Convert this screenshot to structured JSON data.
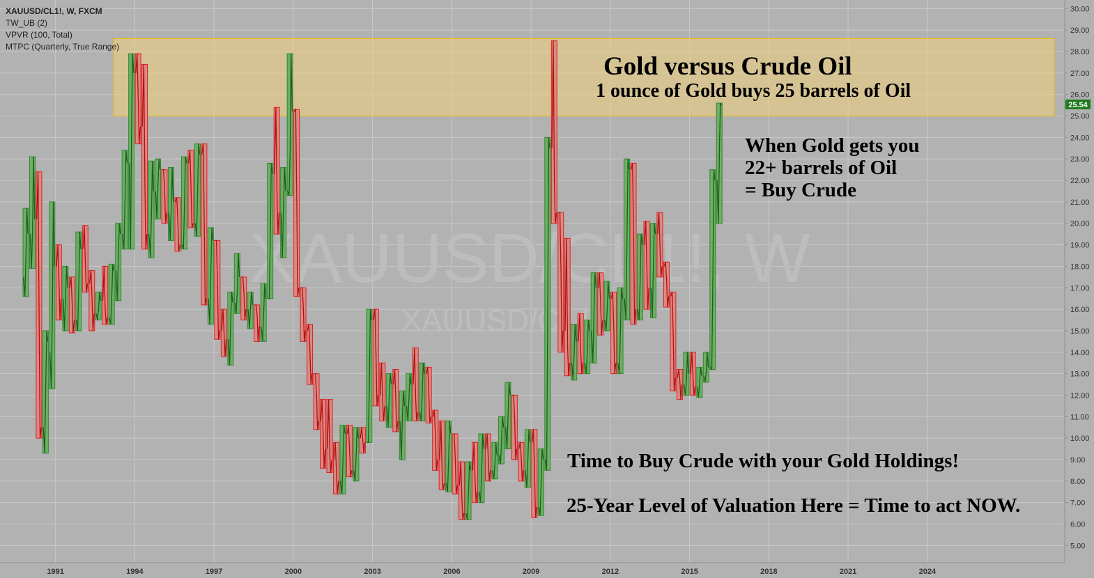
{
  "legend": {
    "symbol": "XAUUSD/CL1!, W, FXCM",
    "indicators": [
      "TW_UB (2)",
      "VPVR (100, Total)",
      "MTPC (Quarterly, True Range)"
    ]
  },
  "watermark": {
    "big": "XAUUSD/CL1!, W",
    "small": "XAUUSD/CL1!"
  },
  "annotations": {
    "title": "Gold versus Crude Oil",
    "subtitle": "1 ounce of Gold buys 25 barrels of Oil",
    "when_lines": [
      "When Gold gets you",
      "22+ barrels of Oil",
      "= Buy Crude"
    ],
    "time_to_buy": "Time to Buy Crude with your Gold Holdings!",
    "valuation": "25-Year Level of Valuation Here = Time to act NOW."
  },
  "colors": {
    "background": "#b2b2b2",
    "grid": "#c8c8c8",
    "up": "#2e8b2e",
    "down": "#e02020",
    "up_fill": "#6fae66",
    "down_fill": "#d88a84",
    "highlight_zone": "#f4d27a",
    "last_price_badge": "#1f7a1f"
  },
  "chart_data": {
    "type": "candlestick",
    "title": "",
    "xlabel": "",
    "ylabel": "",
    "ylim": [
      4.2,
      30.4
    ],
    "xlim": [
      1988.9,
      2029.2
    ],
    "y_ticks": [
      "5.00",
      "6.00",
      "7.00",
      "8.00",
      "9.00",
      "10.00",
      "11.00",
      "12.00",
      "13.00",
      "14.00",
      "15.00",
      "16.00",
      "17.00",
      "18.00",
      "19.00",
      "20.00",
      "21.00",
      "22.00",
      "23.00",
      "24.00",
      "25.00",
      "26.00",
      "27.00",
      "28.00",
      "29.00",
      "30.00"
    ],
    "x_ticks": [
      "1991",
      "1994",
      "1997",
      "2000",
      "2003",
      "2006",
      "2009",
      "2012",
      "2015",
      "2018",
      "2021",
      "2024"
    ],
    "last_price": "25.54",
    "last_price_value": 25.54,
    "highlight_zone": {
      "x_start": 1993.2,
      "x_end": 2028.8,
      "y_low": 25.0,
      "y_high": 28.6
    },
    "grid": true,
    "series": [
      {
        "quarters": [
          {
            "t": 1990.0,
            "o": 17.5,
            "h": 20.7,
            "l": 16.6,
            "c": 19.5
          },
          {
            "t": 1990.25,
            "o": 19.5,
            "h": 23.1,
            "l": 17.9,
            "c": 20.2
          },
          {
            "t": 1990.5,
            "o": 20.2,
            "h": 22.4,
            "l": 10.0,
            "c": 10.5
          },
          {
            "t": 1990.75,
            "o": 10.5,
            "h": 15.0,
            "l": 9.3,
            "c": 14.5
          },
          {
            "t": 1991.0,
            "o": 14.0,
            "h": 21.0,
            "l": 12.3,
            "c": 18.0
          },
          {
            "t": 1991.25,
            "o": 18.0,
            "h": 19.0,
            "l": 15.5,
            "c": 16.5
          },
          {
            "t": 1991.5,
            "o": 16.5,
            "h": 18.0,
            "l": 15.0,
            "c": 17.0
          },
          {
            "t": 1991.75,
            "o": 17.0,
            "h": 17.5,
            "l": 14.9,
            "c": 15.5
          },
          {
            "t": 1992.0,
            "o": 15.5,
            "h": 19.6,
            "l": 15.0,
            "c": 18.8
          },
          {
            "t": 1992.25,
            "o": 18.8,
            "h": 19.9,
            "l": 16.8,
            "c": 17.2
          },
          {
            "t": 1992.5,
            "o": 17.2,
            "h": 17.8,
            "l": 15.0,
            "c": 15.8
          },
          {
            "t": 1992.75,
            "o": 15.8,
            "h": 16.8,
            "l": 15.5,
            "c": 16.4
          },
          {
            "t": 1993.0,
            "o": 16.4,
            "h": 18.0,
            "l": 15.3,
            "c": 15.6
          },
          {
            "t": 1993.25,
            "o": 15.6,
            "h": 18.1,
            "l": 15.3,
            "c": 17.8
          },
          {
            "t": 1993.5,
            "o": 17.8,
            "h": 20.0,
            "l": 16.4,
            "c": 19.5
          },
          {
            "t": 1993.75,
            "o": 19.5,
            "h": 23.4,
            "l": 18.8,
            "c": 22.8
          },
          {
            "t": 1994.0,
            "o": 22.8,
            "h": 27.9,
            "l": 18.8,
            "c": 27.0
          },
          {
            "t": 1994.25,
            "o": 27.0,
            "h": 27.9,
            "l": 23.7,
            "c": 24.5
          },
          {
            "t": 1994.5,
            "o": 24.5,
            "h": 27.4,
            "l": 18.8,
            "c": 19.5
          },
          {
            "t": 1994.75,
            "o": 19.5,
            "h": 22.9,
            "l": 18.4,
            "c": 21.5
          },
          {
            "t": 1995.0,
            "o": 21.5,
            "h": 23.0,
            "l": 20.2,
            "c": 22.5
          },
          {
            "t": 1995.25,
            "o": 22.5,
            "h": 22.5,
            "l": 20.0,
            "c": 20.5
          },
          {
            "t": 1995.5,
            "o": 20.5,
            "h": 22.6,
            "l": 19.2,
            "c": 21.0
          },
          {
            "t": 1995.75,
            "o": 21.0,
            "h": 21.2,
            "l": 18.7,
            "c": 19.0
          },
          {
            "t": 1996.0,
            "o": 19.0,
            "h": 23.1,
            "l": 18.8,
            "c": 22.8
          },
          {
            "t": 1996.25,
            "o": 22.8,
            "h": 23.4,
            "l": 19.8,
            "c": 20.0
          },
          {
            "t": 1996.5,
            "o": 20.0,
            "h": 23.7,
            "l": 19.4,
            "c": 23.2
          },
          {
            "t": 1996.75,
            "o": 23.2,
            "h": 23.7,
            "l": 16.2,
            "c": 16.5
          },
          {
            "t": 1997.0,
            "o": 16.5,
            "h": 19.8,
            "l": 15.3,
            "c": 19.2
          },
          {
            "t": 1997.25,
            "o": 19.2,
            "h": 19.2,
            "l": 14.6,
            "c": 15.0
          },
          {
            "t": 1997.5,
            "o": 15.0,
            "h": 16.0,
            "l": 13.8,
            "c": 14.6
          },
          {
            "t": 1997.75,
            "o": 14.6,
            "h": 16.8,
            "l": 13.4,
            "c": 16.3
          },
          {
            "t": 1998.0,
            "o": 16.3,
            "h": 18.6,
            "l": 15.8,
            "c": 17.5
          },
          {
            "t": 1998.25,
            "o": 17.5,
            "h": 17.5,
            "l": 15.5,
            "c": 16.0
          },
          {
            "t": 1998.5,
            "o": 16.0,
            "h": 16.8,
            "l": 15.1,
            "c": 16.2
          },
          {
            "t": 1998.75,
            "o": 16.2,
            "h": 16.2,
            "l": 14.5,
            "c": 15.2
          },
          {
            "t": 1999.0,
            "o": 15.2,
            "h": 17.2,
            "l": 14.5,
            "c": 16.5
          },
          {
            "t": 1999.25,
            "o": 16.5,
            "h": 22.8,
            "l": 16.5,
            "c": 22.3
          },
          {
            "t": 1999.5,
            "o": 22.3,
            "h": 25.4,
            "l": 19.5,
            "c": 20.5
          },
          {
            "t": 1999.75,
            "o": 20.5,
            "h": 22.6,
            "l": 18.4,
            "c": 21.5
          },
          {
            "t": 2000.0,
            "o": 21.5,
            "h": 27.9,
            "l": 21.3,
            "c": 25.2
          },
          {
            "t": 2000.25,
            "o": 25.2,
            "h": 25.3,
            "l": 16.6,
            "c": 17.0
          },
          {
            "t": 2000.5,
            "o": 17.0,
            "h": 17.0,
            "l": 14.5,
            "c": 15.0
          },
          {
            "t": 2000.75,
            "o": 15.0,
            "h": 15.3,
            "l": 12.5,
            "c": 13.0
          },
          {
            "t": 2001.0,
            "o": 13.0,
            "h": 13.0,
            "l": 10.4,
            "c": 10.8
          },
          {
            "t": 2001.25,
            "o": 10.8,
            "h": 11.8,
            "l": 8.6,
            "c": 9.5
          },
          {
            "t": 2001.5,
            "o": 9.5,
            "h": 11.8,
            "l": 8.4,
            "c": 9.0
          },
          {
            "t": 2001.75,
            "o": 9.0,
            "h": 9.8,
            "l": 7.4,
            "c": 8.0
          },
          {
            "t": 2002.0,
            "o": 8.0,
            "h": 10.6,
            "l": 7.4,
            "c": 10.2
          },
          {
            "t": 2002.25,
            "o": 10.2,
            "h": 10.6,
            "l": 8.2,
            "c": 8.5
          },
          {
            "t": 2002.5,
            "o": 8.5,
            "h": 10.5,
            "l": 8.0,
            "c": 10.0
          },
          {
            "t": 2002.75,
            "o": 10.0,
            "h": 10.5,
            "l": 9.3,
            "c": 9.8
          },
          {
            "t": 2003.0,
            "o": 9.8,
            "h": 16.0,
            "l": 9.8,
            "c": 15.5
          },
          {
            "t": 2003.25,
            "o": 15.5,
            "h": 16.0,
            "l": 11.5,
            "c": 12.0
          },
          {
            "t": 2003.5,
            "o": 12.0,
            "h": 13.5,
            "l": 10.8,
            "c": 11.5
          },
          {
            "t": 2003.75,
            "o": 11.5,
            "h": 13.0,
            "l": 10.5,
            "c": 12.5
          },
          {
            "t": 2004.0,
            "o": 12.5,
            "h": 13.2,
            "l": 10.3,
            "c": 10.8
          },
          {
            "t": 2004.25,
            "o": 10.8,
            "h": 12.2,
            "l": 9.0,
            "c": 11.5
          },
          {
            "t": 2004.5,
            "o": 11.5,
            "h": 13.0,
            "l": 10.8,
            "c": 12.5
          },
          {
            "t": 2004.75,
            "o": 12.5,
            "h": 14.2,
            "l": 10.8,
            "c": 11.2
          },
          {
            "t": 2005.0,
            "o": 11.2,
            "h": 13.5,
            "l": 10.8,
            "c": 13.0
          },
          {
            "t": 2005.25,
            "o": 13.0,
            "h": 13.3,
            "l": 10.7,
            "c": 11.0
          },
          {
            "t": 2005.5,
            "o": 11.0,
            "h": 11.3,
            "l": 8.5,
            "c": 9.0
          },
          {
            "t": 2005.75,
            "o": 9.0,
            "h": 10.8,
            "l": 7.6,
            "c": 7.9
          },
          {
            "t": 2006.0,
            "o": 7.9,
            "h": 10.8,
            "l": 7.5,
            "c": 10.2
          },
          {
            "t": 2006.25,
            "o": 10.2,
            "h": 10.2,
            "l": 7.4,
            "c": 7.8
          },
          {
            "t": 2006.5,
            "o": 7.8,
            "h": 8.9,
            "l": 6.2,
            "c": 6.5
          },
          {
            "t": 2006.75,
            "o": 6.5,
            "h": 8.9,
            "l": 6.2,
            "c": 8.5
          },
          {
            "t": 2007.0,
            "o": 8.5,
            "h": 9.8,
            "l": 7.0,
            "c": 7.5
          },
          {
            "t": 2007.25,
            "o": 7.5,
            "h": 10.2,
            "l": 7.0,
            "c": 9.5
          },
          {
            "t": 2007.5,
            "o": 9.5,
            "h": 10.2,
            "l": 8.0,
            "c": 8.5
          },
          {
            "t": 2007.75,
            "o": 8.5,
            "h": 9.8,
            "l": 8.1,
            "c": 9.2
          },
          {
            "t": 2008.0,
            "o": 9.2,
            "h": 11.0,
            "l": 8.8,
            "c": 10.5
          },
          {
            "t": 2008.25,
            "o": 10.5,
            "h": 12.6,
            "l": 9.5,
            "c": 12.0
          },
          {
            "t": 2008.5,
            "o": 12.0,
            "h": 12.0,
            "l": 9.0,
            "c": 9.5
          },
          {
            "t": 2008.75,
            "o": 9.5,
            "h": 9.8,
            "l": 8.0,
            "c": 8.5
          },
          {
            "t": 2009.0,
            "o": 8.5,
            "h": 10.4,
            "l": 7.7,
            "c": 9.8
          },
          {
            "t": 2009.25,
            "o": 9.8,
            "h": 10.4,
            "l": 6.3,
            "c": 6.8
          },
          {
            "t": 2009.5,
            "o": 6.8,
            "h": 9.5,
            "l": 6.4,
            "c": 9.0
          },
          {
            "t": 2009.75,
            "o": 9.0,
            "h": 24.0,
            "l": 8.5,
            "c": 23.5
          },
          {
            "t": 2010.0,
            "o": 23.5,
            "h": 28.5,
            "l": 20.0,
            "c": 20.5
          },
          {
            "t": 2010.25,
            "o": 20.5,
            "h": 20.5,
            "l": 14.0,
            "c": 15.0
          },
          {
            "t": 2010.5,
            "o": 15.0,
            "h": 19.3,
            "l": 12.9,
            "c": 13.5
          },
          {
            "t": 2010.75,
            "o": 13.5,
            "h": 15.3,
            "l": 12.7,
            "c": 14.5
          },
          {
            "t": 2011.0,
            "o": 14.5,
            "h": 15.8,
            "l": 13.0,
            "c": 13.5
          },
          {
            "t": 2011.25,
            "o": 13.5,
            "h": 15.5,
            "l": 13.0,
            "c": 15.0
          },
          {
            "t": 2011.5,
            "o": 15.0,
            "h": 17.7,
            "l": 13.5,
            "c": 17.0
          },
          {
            "t": 2011.75,
            "o": 17.0,
            "h": 17.7,
            "l": 14.8,
            "c": 15.5
          },
          {
            "t": 2012.0,
            "o": 15.5,
            "h": 17.3,
            "l": 15.0,
            "c": 16.5
          },
          {
            "t": 2012.25,
            "o": 16.5,
            "h": 16.8,
            "l": 13.0,
            "c": 13.5
          },
          {
            "t": 2012.5,
            "o": 13.5,
            "h": 17.0,
            "l": 13.0,
            "c": 16.5
          },
          {
            "t": 2012.75,
            "o": 16.5,
            "h": 23.0,
            "l": 15.5,
            "c": 22.5
          },
          {
            "t": 2013.0,
            "o": 22.5,
            "h": 22.8,
            "l": 15.3,
            "c": 16.0
          },
          {
            "t": 2013.25,
            "o": 16.0,
            "h": 19.5,
            "l": 15.5,
            "c": 19.0
          },
          {
            "t": 2013.5,
            "o": 19.0,
            "h": 20.1,
            "l": 16.0,
            "c": 17.0
          },
          {
            "t": 2013.75,
            "o": 17.0,
            "h": 20.0,
            "l": 15.6,
            "c": 19.5
          },
          {
            "t": 2014.0,
            "o": 19.5,
            "h": 20.5,
            "l": 17.5,
            "c": 18.0
          },
          {
            "t": 2014.25,
            "o": 18.0,
            "h": 18.2,
            "l": 16.1,
            "c": 16.6
          },
          {
            "t": 2014.5,
            "o": 16.6,
            "h": 16.8,
            "l": 12.2,
            "c": 12.8
          },
          {
            "t": 2014.75,
            "o": 12.8,
            "h": 13.2,
            "l": 11.8,
            "c": 12.5
          },
          {
            "t": 2015.0,
            "o": 12.5,
            "h": 14.0,
            "l": 12.0,
            "c": 13.0
          },
          {
            "t": 2015.25,
            "o": 13.0,
            "h": 14.0,
            "l": 12.0,
            "c": 12.4
          },
          {
            "t": 2015.5,
            "o": 12.4,
            "h": 13.3,
            "l": 11.9,
            "c": 12.9
          },
          {
            "t": 2015.75,
            "o": 12.9,
            "h": 14.0,
            "l": 12.6,
            "c": 13.3
          },
          {
            "t": 2016.0,
            "o": 13.3,
            "h": 22.5,
            "l": 13.2,
            "c": 22.0
          },
          {
            "t": 2016.25,
            "o": 22.0,
            "h": 25.6,
            "l": 20.0,
            "c": 25.5
          }
        ]
      }
    ]
  }
}
